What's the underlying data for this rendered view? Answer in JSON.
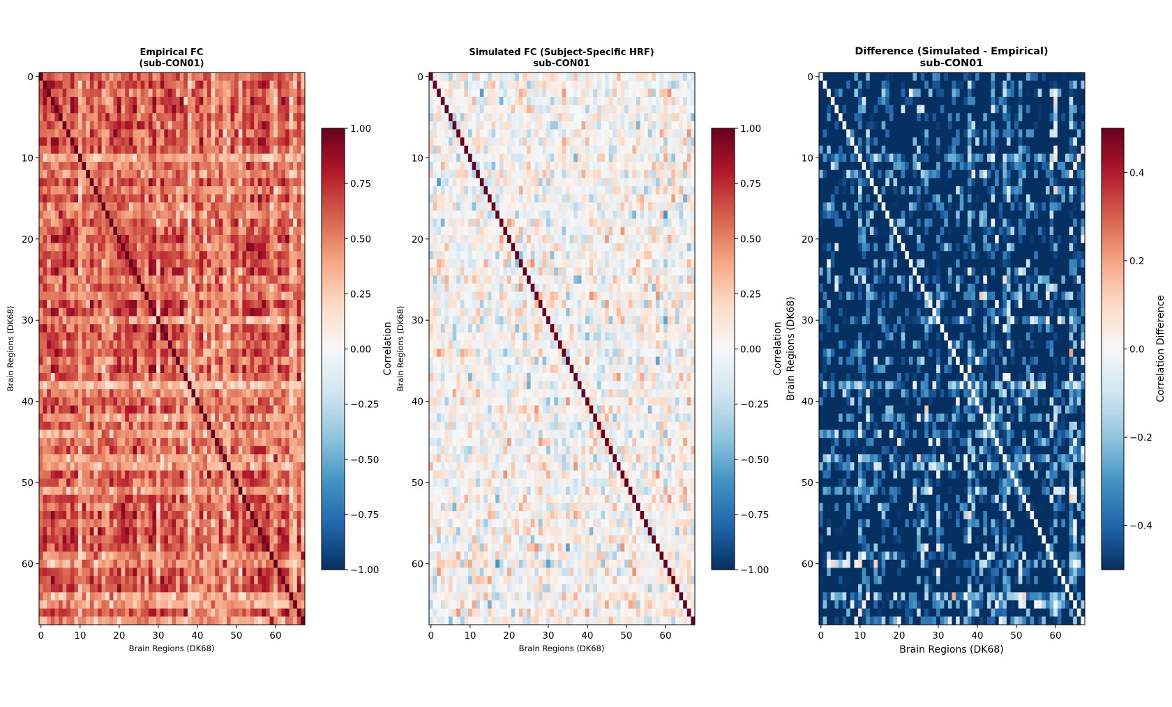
{
  "chart_data": [
    {
      "type": "heatmap",
      "id": "empirical",
      "title_line1": "Empirical FC",
      "title_line2": "(sub-CON01)",
      "xlabel": "Brain Regions (DK68)",
      "ylabel": "Brain Regions (DK68)",
      "n_regions": 68,
      "xticks": [
        "0",
        "10",
        "20",
        "30",
        "40",
        "50",
        "60"
      ],
      "yticks": [
        "0",
        "10",
        "20",
        "30",
        "40",
        "50",
        "60"
      ],
      "colormap": "RdBu_r",
      "clim": [
        -1.0,
        1.0
      ],
      "colorbar_ticks": [
        "1.00",
        "0.75",
        "0.50",
        "0.25",
        "0.00",
        "−0.25",
        "−0.50",
        "−0.75",
        "−1.00"
      ],
      "colorbar_tick_values": [
        1.0,
        0.75,
        0.5,
        0.25,
        0.0,
        -0.25,
        -0.5,
        -0.75,
        -1.0
      ],
      "colorbar_label": "Correlation",
      "diagonal_value": 1.0,
      "typical_offdiag_range": [
        0.3,
        0.9
      ],
      "weak_regions": [
        30,
        47,
        48,
        64,
        65
      ]
    },
    {
      "type": "heatmap",
      "id": "simulated",
      "title_line1": "Simulated FC (Subject-Specific HRF)",
      "title_line2": "sub-CON01",
      "xlabel": "Brain Regions (DK68)",
      "ylabel": "Brain Regions (DK68)",
      "n_regions": 68,
      "xticks": [
        "0",
        "10",
        "20",
        "30",
        "40",
        "50",
        "60"
      ],
      "yticks": [
        "0",
        "10",
        "20",
        "30",
        "40",
        "50",
        "60"
      ],
      "colormap": "RdBu_r",
      "clim": [
        -1.0,
        1.0
      ],
      "colorbar_ticks": [
        "1.00",
        "0.75",
        "0.50",
        "0.25",
        "0.00",
        "−0.25",
        "−0.50",
        "−0.75",
        "−1.00"
      ],
      "colorbar_tick_values": [
        1.0,
        0.75,
        0.5,
        0.25,
        0.0,
        -0.25,
        -0.5,
        -0.75,
        -1.0
      ],
      "colorbar_label": "Correlation",
      "diagonal_value": 1.0,
      "typical_offdiag_range": [
        -0.5,
        0.4
      ]
    },
    {
      "type": "heatmap",
      "id": "difference",
      "title_line1": "Difference (Simulated - Empirical)",
      "title_line2": "sub-CON01",
      "xlabel": "Brain Regions (DK68)",
      "ylabel": "Brain Regions (DK68)",
      "n_regions": 68,
      "xticks": [
        "0",
        "10",
        "20",
        "30",
        "40",
        "50",
        "60"
      ],
      "yticks": [
        "0",
        "10",
        "20",
        "30",
        "40",
        "50",
        "60"
      ],
      "colormap": "RdBu_r",
      "clim": [
        -0.5,
        0.5
      ],
      "colorbar_ticks": [
        "0.4",
        "0.2",
        "0.0",
        "−0.2",
        "−0.4"
      ],
      "colorbar_tick_values": [
        0.4,
        0.2,
        0.0,
        -0.2,
        -0.4
      ],
      "colorbar_label": "Correlation Difference",
      "diagonal_value": 0.0
    }
  ]
}
